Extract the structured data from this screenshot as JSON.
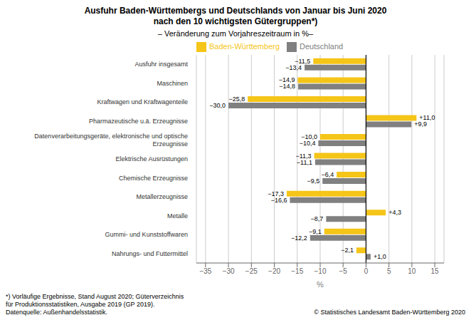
{
  "chart_data": {
    "type": "bar",
    "orientation": "horizontal",
    "title": "Ausfuhr Baden-Württembergs und Deutschlands von Januar bis Juni 2020\nnach den 10 wichtigsten Gütergruppen*)",
    "subtitle": "– Veränderung zum Vorjahreszeitraum in %–",
    "categories": [
      "Ausfuhr insgesamt",
      "Maschinen",
      "Kraftwagen und Kraftwagenteile",
      "Pharmazeutische u.ä. Erzeugnisse",
      "Datenverarbeitungsgeräte, elektronische und optische\nErzeugnisse",
      "Elektrische Ausrüstungen",
      "Chemische Erzeugnisse",
      "Metallerzeugnisse",
      "Metalle",
      "Gummi- und Kunststoffwaren",
      "Nahrungs- und Futtermittel"
    ],
    "series": [
      {
        "name": "Baden-Württemberg",
        "color": "#F5C518",
        "values": [
          -11.5,
          -14.9,
          -25.8,
          11.0,
          -10.0,
          -11.3,
          -6.4,
          -17.3,
          4.3,
          -9.1,
          -2.1
        ],
        "value_labels": [
          "−11,5",
          "−14,9",
          "−25,8",
          "+11,0",
          "−10,0",
          "−11,3",
          "−6,4",
          "−17,3",
          "+4,3",
          "−9,1",
          "−2,1"
        ]
      },
      {
        "name": "Deutschland",
        "color": "#808080",
        "values": [
          -13.4,
          -14.8,
          -30.0,
          9.9,
          -10.4,
          -11.1,
          -9.5,
          -16.6,
          -8.7,
          -12.2,
          1.0
        ],
        "value_labels": [
          "−13,4",
          "−14,8",
          "−30,0",
          "+9,9",
          "−10,4",
          "−11,1",
          "−9,5",
          "−16,6",
          "−8,7",
          "−12,2",
          "+1,0"
        ]
      }
    ],
    "xlim": [
      -37,
      17
    ],
    "xticks": [
      {
        "value": -35,
        "label": "−35"
      },
      {
        "value": -30,
        "label": "−30"
      },
      {
        "value": -25,
        "label": "−25"
      },
      {
        "value": -20,
        "label": "−20"
      },
      {
        "value": -15,
        "label": "−15"
      },
      {
        "value": -10,
        "label": "−10"
      },
      {
        "value": -5,
        "label": "−5"
      },
      0,
      5,
      10,
      15
    ],
    "xlabel": "%",
    "grid": true,
    "legend": "upper left",
    "data_labels": true,
    "annotations": [
      "*) Vorläufige Ergebnisse, Stand August 2020; Güterverzeichnis\nfür Produktionsstatistiken, Ausgabe 2019 (GP 2019).\nDatenquelle: Außenhandelsstatistik.",
      "© Statistisches Landesamt Baden-Württemberg 2020"
    ]
  }
}
